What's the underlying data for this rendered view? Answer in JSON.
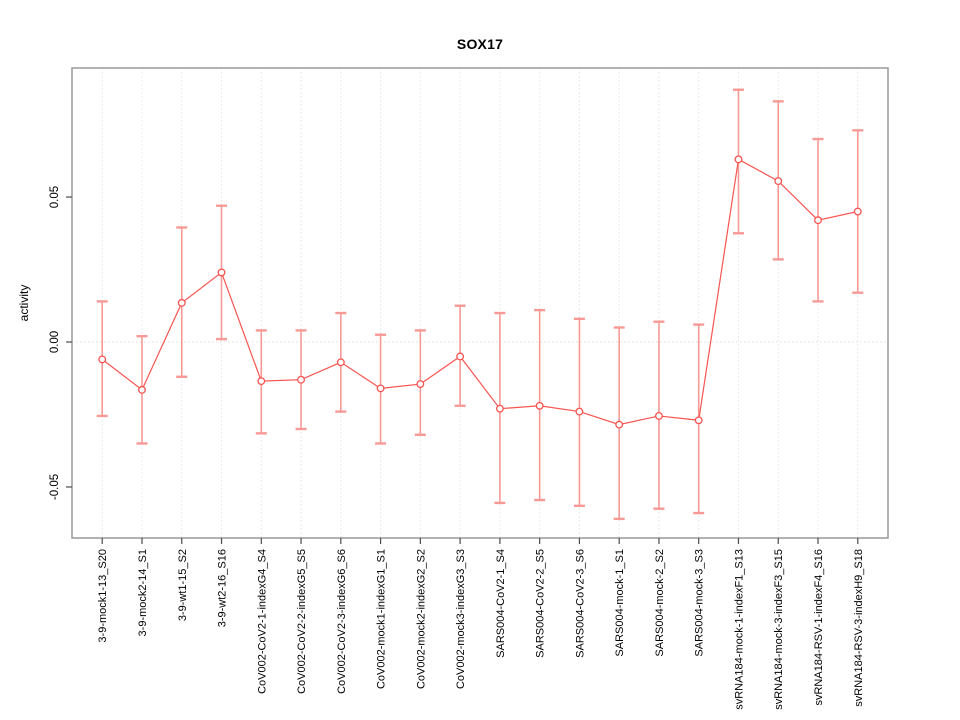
{
  "chart_data": {
    "type": "line",
    "title": "SOX17",
    "ylabel": "activity",
    "xlabel": "",
    "legend": "none",
    "grid": "vertical dotted gridline at each category; horizontal dotted line at y=0",
    "categories": [
      "3-9-mock1-13_S20",
      "3-9-mock2-14_S1",
      "3-9-wt1-15_S2",
      "3-9-wt2-16_S16",
      "CoV002-CoV2-1-indexG4_S4",
      "CoV002-CoV2-2-indexG5_S5",
      "CoV002-CoV2-3-indexG6_S6",
      "CoV002-mock1-indexG1_S1",
      "CoV002-mock2-indexG2_S2",
      "CoV002-mock3-indexG3_S3",
      "SARS004-CoV2-1_S4",
      "SARS004-CoV2-2_S5",
      "SARS004-CoV2-3_S6",
      "SARS004-mock-1_S1",
      "SARS004-mock-2_S2",
      "SARS004-mock-3_S3",
      "svRNA184-mock-1-indexF1_S13",
      "svRNA184-mock-3-indexF3_S15",
      "svRNA184-RSV-1-indexF4_S16",
      "svRNA184-RSV-3-indexH9_S18"
    ],
    "series": [
      {
        "name": "activity",
        "values": [
          -0.006,
          -0.0165,
          0.0135,
          0.024,
          -0.0135,
          -0.013,
          -0.007,
          -0.016,
          -0.0145,
          -0.005,
          -0.023,
          -0.022,
          -0.024,
          -0.0285,
          -0.0255,
          -0.027,
          0.063,
          0.0555,
          0.042,
          0.045
        ],
        "upper": [
          0.014,
          0.002,
          0.0395,
          0.047,
          0.004,
          0.004,
          0.01,
          0.0025,
          0.004,
          0.0125,
          0.01,
          0.011,
          0.008,
          0.005,
          0.007,
          0.006,
          0.087,
          0.083,
          0.07,
          0.073
        ],
        "lower": [
          -0.0255,
          -0.035,
          -0.012,
          0.001,
          -0.0315,
          -0.03,
          -0.024,
          -0.035,
          -0.032,
          -0.022,
          -0.0555,
          -0.0545,
          -0.0565,
          -0.061,
          -0.0575,
          -0.059,
          0.0375,
          0.0285,
          0.014,
          0.017
        ]
      }
    ],
    "yticks": [
      -0.05,
      0,
      0.05
    ],
    "ytick_labels": [
      "-0.05",
      "0.00",
      "0.05"
    ],
    "ylim": [
      -0.0676,
      0.0945
    ],
    "colors": {
      "line": "#f85450",
      "point": "#f85450",
      "error_bar": "#f79a96",
      "grid": "#e3e3e3",
      "zero_line": "#dedede",
      "box": "#999999",
      "tick": "#4d4d4d",
      "text": "#000000",
      "background": "#ffffff"
    }
  }
}
